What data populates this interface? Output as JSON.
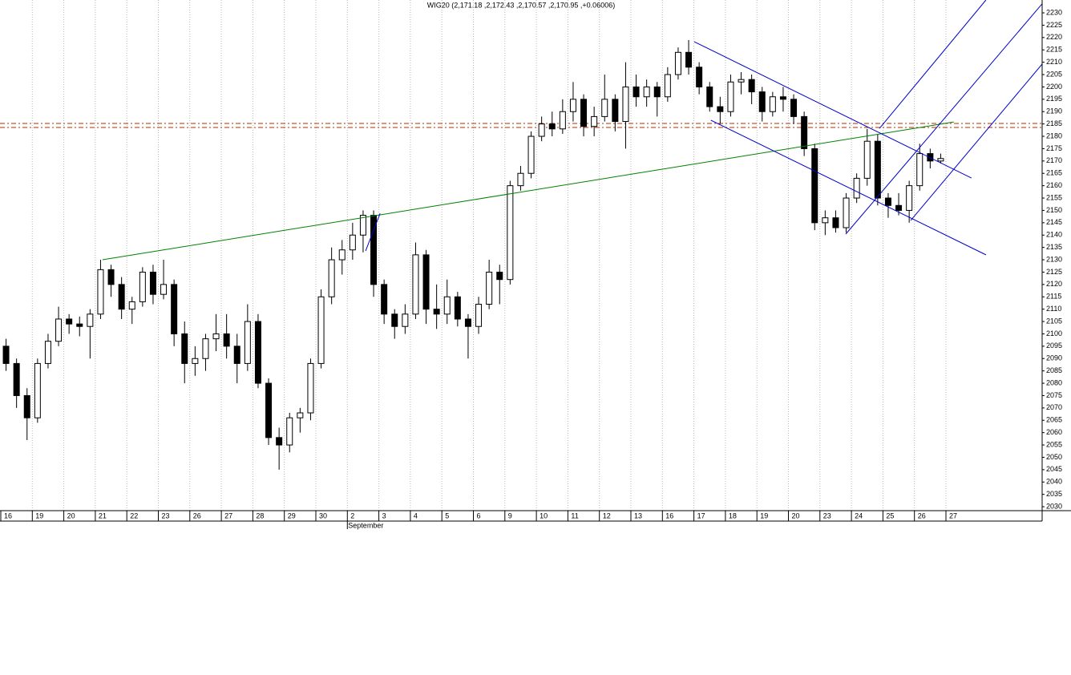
{
  "chart_data": {
    "type": "candlestick",
    "title": "WIG20 (2,171.18 ,2,172.43 ,2,170.57 ,2,170.95 ,+0.06006)",
    "categories": [
      "16",
      "19",
      "20",
      "21",
      "22",
      "23",
      "26",
      "27",
      "28",
      "29",
      "30",
      "2",
      "3",
      "4",
      "5",
      "6",
      "9",
      "10",
      "11",
      "12",
      "13",
      "16",
      "17",
      "18",
      "19",
      "20",
      "23",
      "24",
      "25",
      "26",
      "27"
    ],
    "months": [
      null,
      null,
      null,
      null,
      null,
      null,
      null,
      null,
      null,
      null,
      null,
      "September",
      null,
      null,
      null,
      null,
      null,
      null,
      null,
      null,
      null,
      null,
      null,
      null,
      null,
      null,
      null,
      null,
      null,
      null,
      null
    ],
    "open": [
      [
        2095,
        2088,
        2075
      ],
      [
        2066,
        2088,
        2097
      ],
      [
        2106,
        2104,
        2103
      ],
      [
        2108,
        2126,
        2120
      ],
      [
        2110,
        2113,
        2125
      ],
      [
        2116,
        2120,
        2100
      ],
      [
        2088,
        2090,
        2098
      ],
      [
        2100,
        2095,
        2088
      ],
      [
        2105,
        2080,
        2058
      ],
      [
        2055,
        2066,
        2068
      ],
      [
        2088,
        2115,
        2130
      ],
      [
        2134,
        2140,
        2148
      ],
      [
        2120,
        2108,
        2103
      ],
      [
        2108,
        2132,
        2110
      ],
      [
        2108,
        2115,
        2106
      ],
      [
        2103,
        2112,
        2125
      ],
      [
        2122,
        2160,
        2165
      ],
      [
        2180,
        2185,
        2183
      ],
      [
        2190,
        2195,
        2184
      ],
      [
        2188,
        2195,
        2186
      ],
      [
        2200,
        2196,
        2200
      ],
      [
        2196,
        2205,
        2214
      ],
      [
        2208,
        2200,
        2192
      ],
      [
        2190,
        2202,
        2203
      ],
      [
        2198,
        2190,
        2196
      ],
      [
        2195,
        2188,
        2175
      ],
      [
        2145,
        2147,
        2143
      ],
      [
        2155,
        2163,
        2178
      ],
      [
        2155,
        2152,
        2150
      ],
      [
        2160,
        2173,
        2170
      ],
      []
    ],
    "high": [
      [
        2098,
        2090,
        2078
      ],
      [
        2090,
        2100,
        2111
      ],
      [
        2108,
        2107,
        2110
      ],
      [
        2130,
        2128,
        2123
      ],
      [
        2115,
        2127,
        2128
      ],
      [
        2130,
        2122,
        2105
      ],
      [
        2095,
        2100,
        2108
      ],
      [
        2108,
        2100,
        2112
      ],
      [
        2108,
        2082,
        2062
      ],
      [
        2068,
        2070,
        2090
      ],
      [
        2118,
        2135,
        2138
      ],
      [
        2145,
        2150,
        2150
      ],
      [
        2122,
        2110,
        2112
      ],
      [
        2137,
        2134,
        2120
      ],
      [
        2122,
        2117,
        2108
      ],
      [
        2115,
        2130,
        2128
      ],
      [
        2162,
        2168,
        2182
      ],
      [
        2188,
        2190,
        2195
      ],
      [
        2202,
        2197,
        2192
      ],
      [
        2205,
        2197,
        2210
      ],
      [
        2205,
        2203,
        2202
      ],
      [
        2208,
        2216,
        2219
      ],
      [
        2210,
        2202,
        2196
      ],
      [
        2205,
        2206,
        2205
      ],
      [
        2200,
        2198,
        2200
      ],
      [
        2197,
        2190,
        2177
      ],
      [
        2150,
        2150,
        2157
      ],
      [
        2165,
        2183,
        2181
      ],
      [
        2157,
        2157,
        2162
      ],
      [
        2177,
        2175,
        2173
      ],
      []
    ],
    "low": [
      [
        2085,
        2070,
        2057
      ],
      [
        2064,
        2086,
        2095
      ],
      [
        2100,
        2099,
        2090
      ],
      [
        2106,
        2115,
        2106
      ],
      [
        2104,
        2111,
        2112
      ],
      [
        2114,
        2095,
        2080
      ],
      [
        2083,
        2085,
        2093
      ],
      [
        2090,
        2080,
        2085
      ],
      [
        2078,
        2055,
        2045
      ],
      [
        2052,
        2060,
        2065
      ],
      [
        2086,
        2112,
        2124
      ],
      [
        2130,
        2133,
        2115
      ],
      [
        2104,
        2098,
        2100
      ],
      [
        2106,
        2104,
        2102
      ],
      [
        2104,
        2103,
        2090
      ],
      [
        2100,
        2110,
        2112
      ],
      [
        2120,
        2158,
        2163
      ],
      [
        2178,
        2180,
        2181
      ],
      [
        2186,
        2180,
        2180
      ],
      [
        2186,
        2182,
        2175
      ],
      [
        2192,
        2192,
        2188
      ],
      [
        2194,
        2203,
        2205
      ],
      [
        2197,
        2190,
        2185
      ],
      [
        2188,
        2197,
        2193
      ],
      [
        2186,
        2188,
        2190
      ],
      [
        2185,
        2172,
        2142
      ],
      [
        2140,
        2141,
        2141
      ],
      [
        2153,
        2160,
        2152
      ],
      [
        2147,
        2148,
        2145
      ],
      [
        2158,
        2167,
        2169
      ],
      []
    ],
    "close": [
      [
        2088,
        2075,
        2066
      ],
      [
        2088,
        2097,
        2106
      ],
      [
        2104,
        2103,
        2108
      ],
      [
        2126,
        2120,
        2110
      ],
      [
        2113,
        2125,
        2116
      ],
      [
        2120,
        2100,
        2088
      ],
      [
        2090,
        2098,
        2100
      ],
      [
        2095,
        2088,
        2105
      ],
      [
        2080,
        2058,
        2055
      ],
      [
        2066,
        2068,
        2088
      ],
      [
        2115,
        2130,
        2134
      ],
      [
        2140,
        2148,
        2120
      ],
      [
        2108,
        2103,
        2108
      ],
      [
        2132,
        2110,
        2108
      ],
      [
        2115,
        2106,
        2103
      ],
      [
        2112,
        2125,
        2122
      ],
      [
        2160,
        2165,
        2180
      ],
      [
        2185,
        2183,
        2190
      ],
      [
        2195,
        2184,
        2188
      ],
      [
        2195,
        2186,
        2200
      ],
      [
        2196,
        2200,
        2196
      ],
      [
        2205,
        2214,
        2208
      ],
      [
        2200,
        2192,
        2190
      ],
      [
        2202,
        2203,
        2198
      ],
      [
        2190,
        2196,
        2195
      ],
      [
        2188,
        2175,
        2145
      ],
      [
        2147,
        2143,
        2155
      ],
      [
        2163,
        2178,
        2155
      ],
      [
        2152,
        2150,
        2160
      ],
      [
        2173,
        2170,
        2171
      ],
      []
    ],
    "ylim": [
      2028.4,
      2235.2
    ],
    "yticks": [
      2030,
      2035,
      2040,
      2045,
      2050,
      2055,
      2060,
      2065,
      2070,
      2075,
      2080,
      2085,
      2090,
      2095,
      2100,
      2105,
      2110,
      2115,
      2120,
      2125,
      2130,
      2135,
      2140,
      2145,
      2150,
      2155,
      2160,
      2165,
      2170,
      2175,
      2180,
      2185,
      2190,
      2195,
      2200,
      2205,
      2210,
      2215,
      2220,
      2225,
      2230
    ],
    "grid": true,
    "up_color": "#ffffff",
    "down_color": "#000000",
    "lines": [
      {
        "color": "#008000",
        "x": [
          3.23,
          30.25
        ],
        "y": [
          2130.0,
          2185.8
        ]
      },
      {
        "color": "#0000cc",
        "x": [
          22.01,
          30.81
        ],
        "y": [
          2218.3,
          2163.1
        ]
      },
      {
        "color": "#0000cc",
        "x": [
          22.54,
          31.27
        ],
        "y": [
          2186.5,
          2132.0
        ]
      },
      {
        "color": "#0000cc",
        "x": [
          27.89,
          31.27
        ],
        "y": [
          2183.2,
          2235.2
        ]
      },
      {
        "color": "#0000cc",
        "x": [
          26.82,
          33.05
        ],
        "y": [
          2140.4,
          2233.6
        ]
      },
      {
        "color": "#0000cc",
        "x": [
          28.88,
          33.05
        ],
        "y": [
          2145.9,
          2209.2
        ]
      },
      {
        "color": "#0000cc",
        "x": [
          11.58,
          12.04
        ],
        "y": [
          2133.6,
          2148.8
        ]
      }
    ],
    "hlines": [
      {
        "color": "#b03000",
        "value": 2185.2
      },
      {
        "color": "#b03000",
        "value": 2183.6
      }
    ]
  }
}
